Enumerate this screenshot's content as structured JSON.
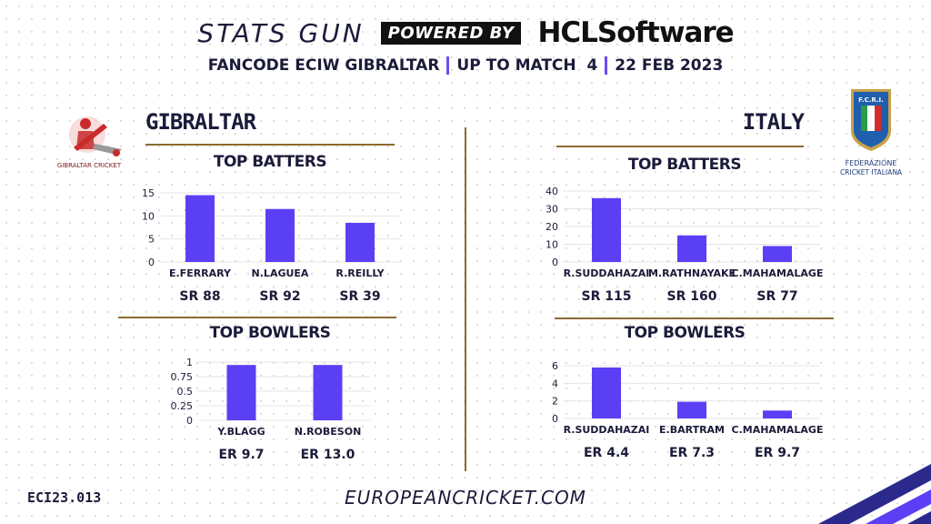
{
  "header": {
    "brand": "STATS GUN",
    "powered_by": "POWERED BY",
    "sponsor": "HCLSoftware",
    "subtitle_event": "FANCODE ECIW GIBRALTAR",
    "subtitle_match": "UP TO MATCH  4",
    "subtitle_date": "22 FEB 2023"
  },
  "footer": {
    "code": "ECI23.013",
    "website": "EUROPEANCRICKET.COM"
  },
  "colors": {
    "bar": "#5b3ff5",
    "gold": "#8b6b30",
    "text": "#1b1b3a"
  },
  "teams": {
    "left": {
      "name": "GIBRALTAR",
      "logo_text": "GIBRALTAR CRICKET",
      "logo_icon": "cricket-batter-icon"
    },
    "right": {
      "name": "ITALY",
      "logo_text_top": "F.C.R.I.",
      "logo_text_line1": "FEDERAZIONE",
      "logo_text_line2": "CRICKET ITALIANA",
      "logo_icon": "shield-icon"
    }
  },
  "chart_data": [
    {
      "id": "gib-batters",
      "type": "bar",
      "title": "TOP BATTERS",
      "categories": [
        "E.FERRARY",
        "N.LAGUEA",
        "R.REILLY"
      ],
      "values": [
        14.5,
        11.5,
        8.5
      ],
      "yticks": [
        0,
        5,
        10,
        15
      ],
      "ylim": [
        0,
        15
      ],
      "sublabels": [
        "SR 88",
        "SR 92",
        "SR 39"
      ]
    },
    {
      "id": "gib-bowlers",
      "type": "bar",
      "title": "TOP BOWLERS",
      "categories": [
        "Y.BLAGG",
        "N.ROBESON"
      ],
      "values": [
        0.95,
        0.95
      ],
      "yticks": [
        0,
        0.25,
        0.5,
        0.75,
        1
      ],
      "ylim": [
        0,
        1
      ],
      "sublabels": [
        "ER 9.7",
        "ER 13.0"
      ]
    },
    {
      "id": "ita-batters",
      "type": "bar",
      "title": "TOP BATTERS",
      "categories": [
        "R.SUDDAHAZAI",
        "M.RATHNAYAKE",
        "C.MAHAMALAGE"
      ],
      "values": [
        36,
        15,
        9
      ],
      "yticks": [
        0,
        10,
        20,
        30,
        40
      ],
      "ylim": [
        0,
        40
      ],
      "sublabels": [
        "SR 115",
        "SR 160",
        "SR 77"
      ]
    },
    {
      "id": "ita-bowlers",
      "type": "bar",
      "title": "TOP BOWLERS",
      "categories": [
        "R.SUDDAHAZAI",
        "E.BARTRAM",
        "C.MAHAMALAGE"
      ],
      "values": [
        5.8,
        1.9,
        0.9
      ],
      "yticks": [
        0,
        2,
        4,
        6
      ],
      "ylim": [
        0,
        6
      ],
      "sublabels": [
        "ER 4.4",
        "ER 7.3",
        "ER 9.7"
      ]
    }
  ]
}
